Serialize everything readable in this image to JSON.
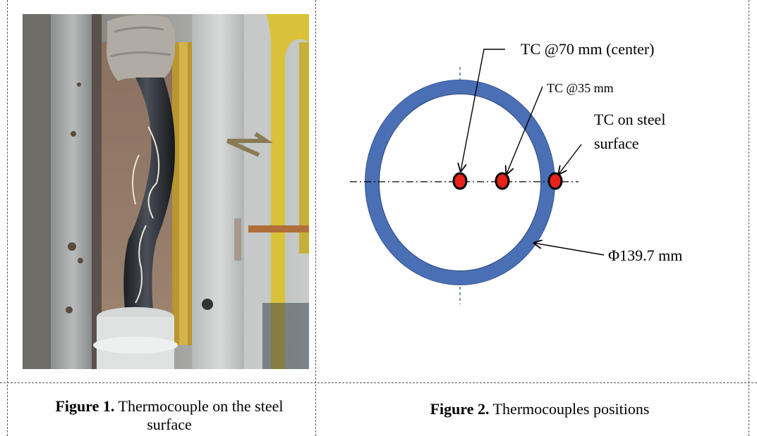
{
  "figure1": {
    "caption_label": "Figure 1.",
    "caption_text": "Thermocouple on the steel surface"
  },
  "figure2": {
    "caption_label": "Figure 2.",
    "caption_text": "Thermocouples positions",
    "labels": {
      "tc_center": "TC @70 mm (center)",
      "tc_35": "TC @35 mm",
      "tc_surface_line1": "TC on steel",
      "tc_surface_line2": "surface",
      "diameter": "Φ139.7 mm"
    },
    "colors": {
      "tube": "#4a6fb4",
      "tube_edge": "#3a5a99",
      "thermocouple": "#e8211a",
      "axis": "#1f4f8f"
    }
  }
}
